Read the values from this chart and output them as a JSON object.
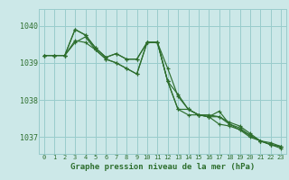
{
  "background_color": "#cce8e8",
  "grid_color": "#99cccc",
  "line_color": "#2d6e2d",
  "title": "Graphe pression niveau de la mer (hPa)",
  "xlim": [
    -0.5,
    23.5
  ],
  "ylim": [
    1036.55,
    1040.45
  ],
  "yticks": [
    1037,
    1038,
    1039,
    1040
  ],
  "xticks": [
    0,
    1,
    2,
    3,
    4,
    5,
    6,
    7,
    8,
    9,
    10,
    11,
    12,
    13,
    14,
    15,
    16,
    17,
    18,
    19,
    20,
    21,
    22,
    23
  ],
  "series": [
    [
      1039.2,
      1039.2,
      1039.2,
      1039.55,
      1039.7,
      1039.35,
      1039.1,
      1039.0,
      1038.85,
      1038.7,
      1039.55,
      1039.55,
      1038.5,
      1037.75,
      1037.75,
      1037.6,
      1037.55,
      1037.55,
      1037.4,
      1037.3,
      1037.1,
      1036.9,
      1036.8,
      1036.75
    ],
    [
      1039.2,
      1039.2,
      1039.2,
      1039.9,
      1039.75,
      1039.4,
      1039.15,
      1039.25,
      1039.1,
      1039.1,
      1039.55,
      1039.55,
      1038.5,
      1038.15,
      1037.75,
      1037.6,
      1037.55,
      1037.7,
      1037.35,
      1037.25,
      1037.05,
      1036.9,
      1036.85,
      1036.75
    ],
    [
      1039.2,
      1039.2,
      1039.2,
      1039.9,
      1039.75,
      1039.4,
      1039.15,
      1039.25,
      1039.1,
      1039.1,
      1039.55,
      1039.55,
      1038.5,
      1037.75,
      1037.6,
      1037.6,
      1037.6,
      1037.55,
      1037.35,
      1037.2,
      1037.05,
      1036.9,
      1036.8,
      1036.7
    ],
    [
      1039.2,
      1039.2,
      1039.2,
      1039.6,
      1039.55,
      1039.35,
      1039.1,
      1039.0,
      1038.85,
      1038.7,
      1039.55,
      1039.55,
      1038.85,
      1038.1,
      1037.75,
      1037.6,
      1037.55,
      1037.35,
      1037.3,
      1037.2,
      1037.0,
      1036.9,
      1036.8,
      1036.75
    ]
  ]
}
